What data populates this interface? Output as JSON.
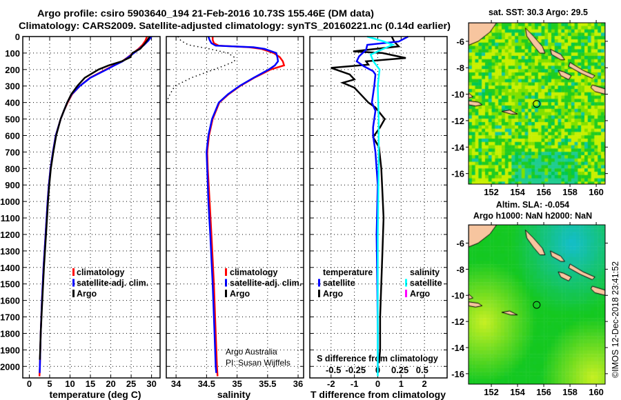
{
  "title": {
    "line1": "Argo profile: csiro 5903640_194 21-Feb-2016 10.73S 155.46E (DM data)",
    "line2": "Climatology: CARS2009. Satellite-adjusted climatology: synTS_20160221.nc (0.14d earlier)"
  },
  "colors": {
    "climatology": "#ff0000",
    "satellite": "#0000ff",
    "argo": "#000000",
    "s_satellite": "#00ffff",
    "s_argo": "#ff00ff",
    "land": "#f7c59f"
  },
  "chart_data": [
    {
      "type": "line",
      "id": "temperature",
      "xlabel": "temperature (deg C)",
      "ylabel": "depth",
      "xlim": [
        -1.6,
        32.1
      ],
      "ylim": [
        0,
        2070
      ],
      "xticks": [
        0,
        5,
        10,
        15,
        20,
        25,
        30
      ],
      "yticks": [
        0,
        100,
        200,
        300,
        400,
        500,
        600,
        700,
        800,
        900,
        1000,
        1100,
        1200,
        1300,
        1400,
        1500,
        1600,
        1700,
        1800,
        1900,
        2000
      ],
      "grid": true,
      "legend": {
        "placement": "center-right",
        "entries": [
          {
            "label": "climatology",
            "color": "#ff0000"
          },
          {
            "label": "satellite-adj. clim.",
            "color": "#0000ff"
          },
          {
            "label": "Argo",
            "color": "#000000"
          }
        ]
      },
      "series": [
        {
          "name": "climatology",
          "color": "#ff0000",
          "depth": [
            0,
            25,
            50,
            75,
            100,
            125,
            150,
            175,
            200,
            250,
            300,
            350,
            400,
            450,
            500,
            600,
            700,
            800,
            900,
            1000,
            1200,
            1400,
            1600,
            1800,
            2000,
            2060
          ],
          "values": [
            28.9,
            28.5,
            27.8,
            26.8,
            25.5,
            24.2,
            22.8,
            20.8,
            18.8,
            14.9,
            12.4,
            10.5,
            9.4,
            8.5,
            7.7,
            6.5,
            5.8,
            5.2,
            4.8,
            4.5,
            4.0,
            3.5,
            3.1,
            2.8,
            2.6,
            2.5
          ]
        },
        {
          "name": "satellite-adj. clim.",
          "color": "#0000ff",
          "depth": [
            0,
            25,
            50,
            75,
            100,
            125,
            150,
            175,
            200,
            250,
            300,
            350,
            400,
            450,
            500,
            600,
            700,
            800,
            900,
            1000,
            1200,
            1400,
            1600,
            1800,
            2000,
            2040
          ],
          "values": [
            30.0,
            29.2,
            28.2,
            27.0,
            25.7,
            24.3,
            22.9,
            20.9,
            19.0,
            15.0,
            12.4,
            10.4,
            9.3,
            8.5,
            7.7,
            6.5,
            5.8,
            5.2,
            4.8,
            4.5,
            4.0,
            3.5,
            3.1,
            2.8,
            2.6,
            2.55
          ]
        },
        {
          "name": "Argo",
          "color": "#000000",
          "depth": [
            0,
            25,
            50,
            75,
            100,
            125,
            150,
            175,
            200,
            250,
            300,
            350,
            400,
            450,
            500,
            600,
            700,
            800,
            900,
            1000,
            1200,
            1400,
            1600,
            1800,
            1960
          ],
          "values": [
            29.6,
            28.9,
            28.1,
            27.2,
            25.3,
            24.8,
            22.7,
            19.5,
            17.0,
            13.6,
            11.8,
            10.3,
            9.3,
            8.5,
            7.7,
            6.6,
            5.9,
            5.3,
            4.9,
            4.6,
            4.1,
            3.6,
            3.2,
            2.8,
            2.6
          ]
        }
      ]
    },
    {
      "type": "line",
      "id": "salinity",
      "xlabel": "salinity",
      "xlim": [
        33.84,
        36.09
      ],
      "ylim": [
        0,
        2070
      ],
      "xticks": [
        34,
        34.5,
        35,
        35.5,
        36
      ],
      "grid": true,
      "legend": {
        "placement": "center-right",
        "entries": [
          {
            "label": "climatology",
            "color": "#ff0000"
          },
          {
            "label": "satellite-adj. clim.",
            "color": "#0000ff"
          },
          {
            "label": "Argo",
            "color": "#000000"
          }
        ]
      },
      "annotations": [
        "Argo Australia",
        "PI: Susan Wijffels"
      ],
      "series": [
        {
          "name": "climatology",
          "color": "#ff0000",
          "depth": [
            0,
            20,
            40,
            55,
            65,
            75,
            100,
            125,
            150,
            175,
            200,
            250,
            300,
            350,
            400,
            500,
            600,
            700,
            800,
            1000,
            1200,
            1500,
            1800,
            2000,
            2060
          ],
          "values": [
            34.6,
            34.6,
            34.62,
            34.7,
            35.2,
            35.4,
            35.6,
            35.7,
            35.75,
            35.77,
            35.55,
            35.28,
            35.05,
            34.86,
            34.71,
            34.6,
            34.54,
            34.51,
            34.52,
            34.55,
            34.58,
            34.62,
            34.65,
            34.67,
            34.68
          ]
        },
        {
          "name": "satellite-adj. clim.",
          "color": "#0000ff",
          "depth": [
            0,
            20,
            40,
            55,
            65,
            75,
            100,
            125,
            150,
            175,
            200,
            250,
            300,
            350,
            400,
            500,
            600,
            700,
            800,
            1000,
            1200,
            1500,
            1800,
            2000,
            2040
          ],
          "values": [
            34.53,
            34.55,
            34.58,
            34.65,
            35.27,
            35.45,
            35.64,
            35.66,
            35.67,
            35.62,
            35.52,
            35.27,
            35.04,
            34.85,
            34.7,
            34.59,
            34.53,
            34.5,
            34.51,
            34.53,
            34.56,
            34.6,
            34.63,
            34.65,
            34.66
          ]
        },
        {
          "name": "dotted",
          "color": "#000000",
          "dotted": true,
          "depth": [
            0,
            25,
            50,
            75,
            100,
            125,
            150,
            175,
            200,
            250,
            300,
            350,
            400
          ],
          "values": [
            34.03,
            34.08,
            34.2,
            34.55,
            34.85,
            34.95,
            34.96,
            34.8,
            34.62,
            34.25,
            33.98,
            33.9,
            33.84
          ]
        }
      ]
    },
    {
      "type": "line",
      "id": "difference",
      "xlabel": "T difference from climatology",
      "xlabel_top": "S difference from climatology",
      "xlim": [
        -2.91,
        2.97
      ],
      "ylim": [
        0,
        2070
      ],
      "xticks": [
        -2,
        -1,
        0,
        1,
        2
      ],
      "s_ticks": [
        "-0.5",
        "-0.25",
        "0",
        "0.25",
        "0.5"
      ],
      "s_tick_values": [
        -0.5,
        -0.25,
        0,
        0.25,
        0.5
      ],
      "s_to_t_scale": 3.8,
      "grid": true,
      "legend": {
        "temperature_header": "temperature",
        "salinity_header": "salinity",
        "entries": [
          {
            "label": "satellite",
            "color": "#0000ff",
            "group": "temperature"
          },
          {
            "label": "Argo",
            "color": "#000000",
            "group": "temperature"
          },
          {
            "label": "satellite",
            "color": "#00ffff",
            "group": "salinity"
          },
          {
            "label": "Argo",
            "color": "#ff00ff",
            "group": "salinity"
          }
        ]
      },
      "series": [
        {
          "name": "T Argo",
          "color": "#000000",
          "units": "T",
          "depth": [
            0,
            30,
            60,
            90,
            100,
            130,
            150,
            170,
            190,
            230,
            260,
            280,
            310,
            340,
            400,
            430,
            500,
            550,
            610,
            670,
            800,
            950,
            1100,
            1300,
            1500,
            1700,
            1900,
            1980
          ],
          "values": [
            0.6,
            0.7,
            0.9,
            -1.05,
            0.2,
            1.2,
            -0.5,
            -0.4,
            -2.0,
            -1.2,
            -1.0,
            -1.5,
            -1.0,
            -0.8,
            -0.4,
            -0.1,
            0.3,
            0.1,
            -0.2,
            0.05,
            0.15,
            0.2,
            0.25,
            0.2,
            0.15,
            0.1,
            0.1,
            0.05
          ]
        },
        {
          "name": "T satellite",
          "color": "#0000ff",
          "units": "T",
          "depth": [
            0,
            30,
            50,
            80,
            120,
            150,
            180,
            210,
            230,
            300,
            400,
            450,
            550,
            600,
            700,
            900,
            1200,
            1500,
            1800,
            2040
          ],
          "values": [
            1.3,
            0.9,
            -0.45,
            -0.5,
            -0.8,
            -0.9,
            -0.6,
            -0.2,
            -0.1,
            -0.15,
            -0.25,
            -0.1,
            -0.2,
            -0.2,
            -0.1,
            0,
            -0.05,
            -0.02,
            0,
            0
          ]
        },
        {
          "name": "S satellite",
          "color": "#00ffff",
          "units": "S",
          "depth": [
            0,
            30,
            50,
            80,
            110,
            150,
            200,
            300,
            500,
            800,
            1200,
            1600,
            2000,
            2060
          ],
          "values": [
            -0.12,
            0.07,
            0.17,
            0.04,
            -0.08,
            -0.05,
            0.02,
            0,
            0.01,
            0.01,
            0,
            0,
            0,
            0
          ]
        }
      ]
    }
  ],
  "maps": {
    "sst": {
      "title": "sat. SST: 30.3 Argo: 29.5"
    },
    "sla": {
      "title1": "Altim. SLA: -0.054",
      "title2": "Argo h1000: NaN h2000: NaN"
    },
    "lat_ticks": [
      -6,
      -8,
      -10,
      -12,
      -14,
      -16
    ],
    "lon_ticks": [
      152,
      154,
      156,
      158,
      160
    ],
    "lat_range": [
      -16.8,
      -4.6
    ],
    "lon_range": [
      150.26,
      160.68
    ],
    "profile_location": {
      "lon": 155.46,
      "lat": -10.73
    }
  },
  "footer": {
    "copyright": "©IMOS 12-Dec-2018 23:41:52"
  }
}
